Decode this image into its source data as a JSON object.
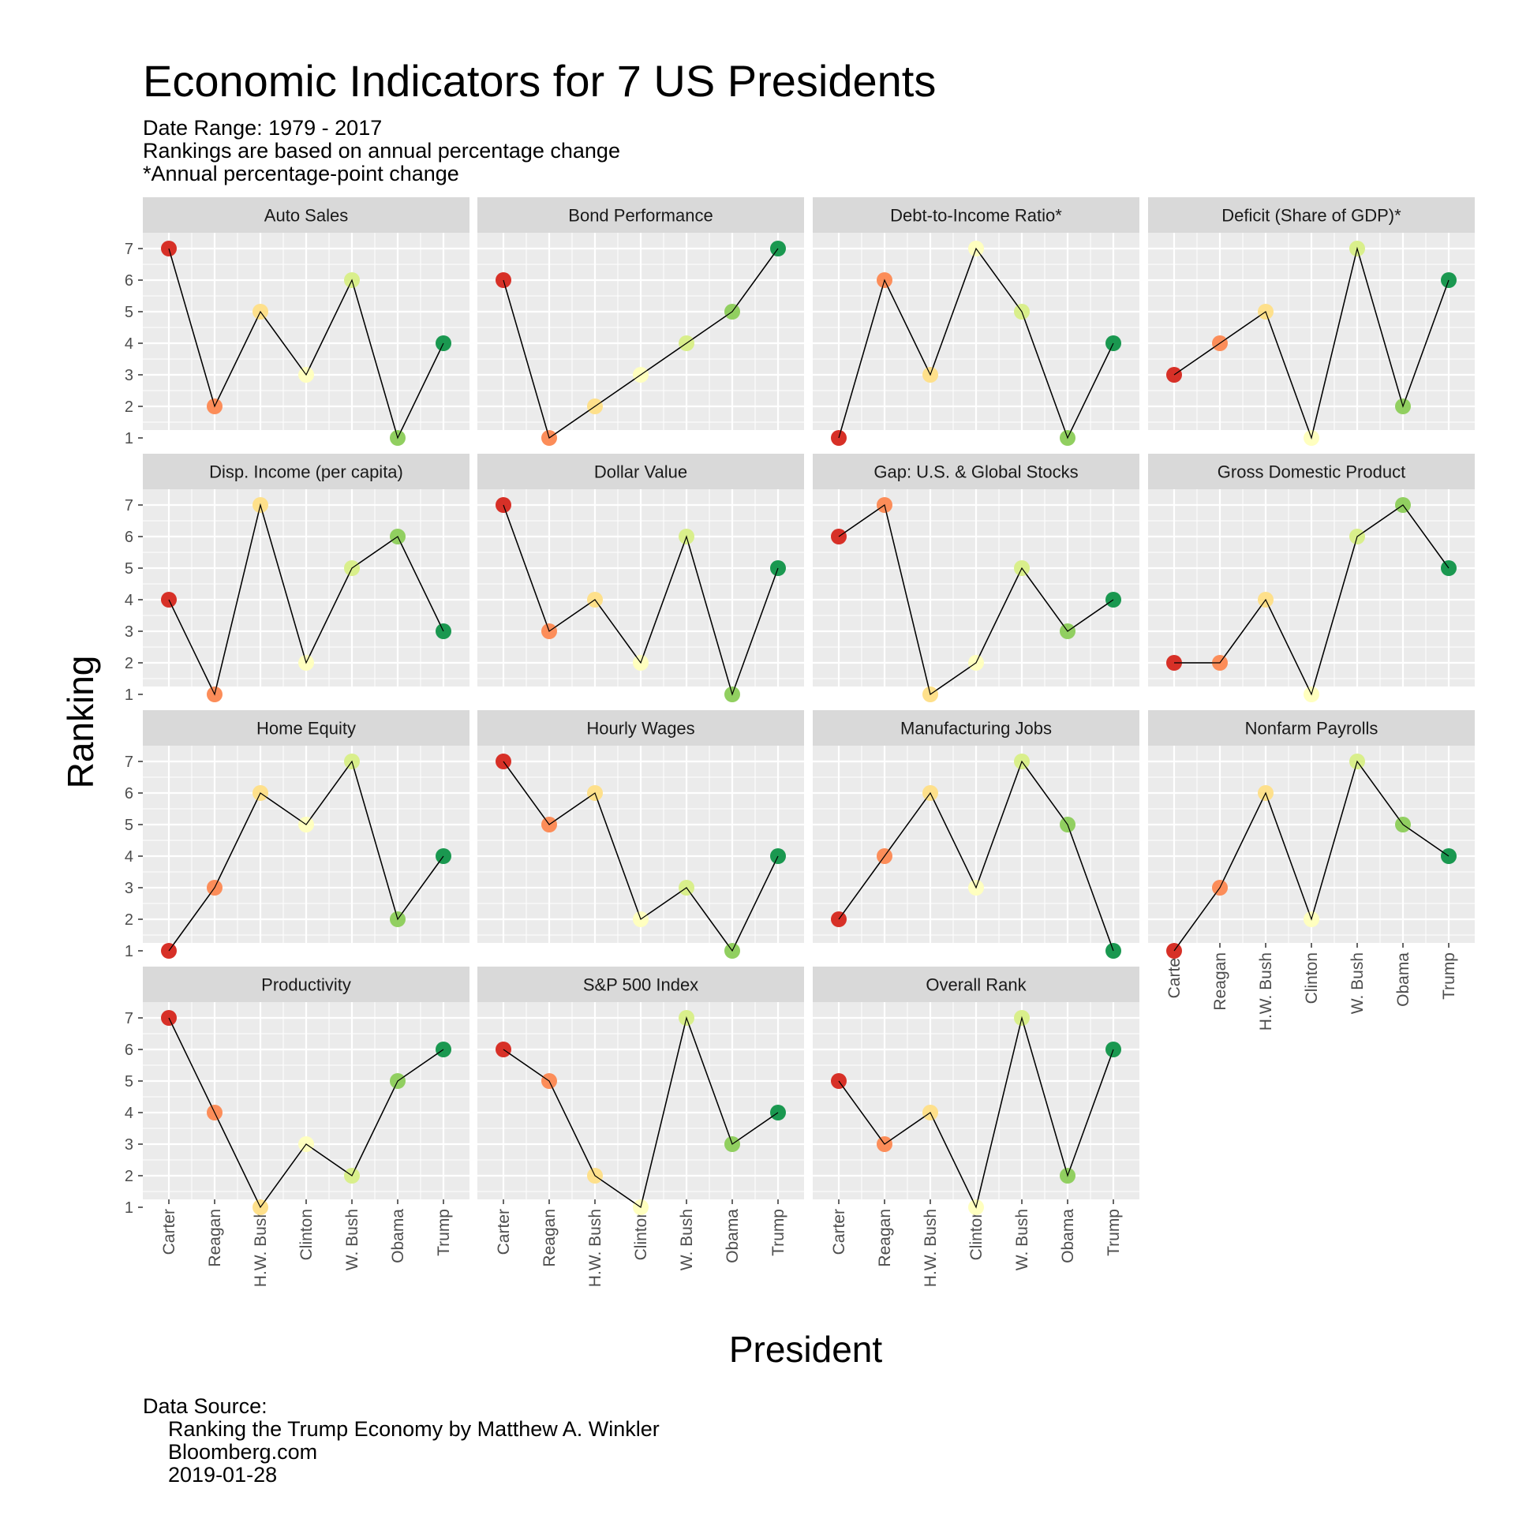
{
  "title": "Economic Indicators for 7 US Presidents",
  "subtitle": [
    "Date Range: 1979 - 2017",
    "Rankings are based on annual percentage change",
    "*Annual percentage-point change"
  ],
  "caption": {
    "label": "Data Source:",
    "lines": [
      "Ranking the Trump Economy by Matthew A. Winkler",
      "Bloomberg.com",
      "2019-01-28"
    ]
  },
  "chart_data": {
    "type": "line",
    "xlabel": "President",
    "ylabel": "Ranking",
    "categories": [
      "Carter",
      "Reagan",
      "H.W. Bush",
      "Clinton",
      "W. Bush",
      "Obama",
      "Trump"
    ],
    "yticks": [
      1,
      2,
      3,
      4,
      5,
      6,
      7
    ],
    "ylim": [
      1,
      7
    ],
    "grid": true,
    "point_colors": [
      "#d73027",
      "#fc8d59",
      "#fee08b",
      "#ffffbf",
      "#d9ef8b",
      "#91cf60",
      "#1a9850"
    ],
    "line_color": "#000000",
    "panel_background": "#ebebeb",
    "strip_background": "#d9d9d9",
    "panels": [
      {
        "name": "Auto Sales",
        "values": [
          7,
          2,
          5,
          3,
          6,
          1,
          4
        ]
      },
      {
        "name": "Bond Performance",
        "values": [
          6,
          1,
          2,
          3,
          4,
          5,
          7
        ]
      },
      {
        "name": "Debt-to-Income Ratio*",
        "values": [
          1,
          6,
          3,
          7,
          5,
          1,
          4
        ]
      },
      {
        "name": "Deficit (Share of GDP)*",
        "values": [
          3,
          4,
          5,
          1,
          7,
          2,
          6
        ]
      },
      {
        "name": "Disp. Income (per capita)",
        "values": [
          4,
          1,
          7,
          2,
          5,
          6,
          3
        ]
      },
      {
        "name": "Dollar Value",
        "values": [
          7,
          3,
          4,
          2,
          6,
          1,
          5
        ]
      },
      {
        "name": "Gap: U.S. & Global Stocks",
        "values": [
          6,
          7,
          1,
          2,
          5,
          3,
          4
        ]
      },
      {
        "name": "Gross Domestic Product",
        "values": [
          2,
          2,
          4,
          1,
          6,
          7,
          5
        ]
      },
      {
        "name": "Home Equity",
        "values": [
          1,
          3,
          6,
          5,
          7,
          2,
          4
        ]
      },
      {
        "name": "Hourly Wages",
        "values": [
          7,
          5,
          6,
          2,
          3,
          1,
          4
        ]
      },
      {
        "name": "Manufacturing Jobs",
        "values": [
          2,
          4,
          6,
          3,
          7,
          5,
          1
        ]
      },
      {
        "name": "Nonfarm Payrolls",
        "values": [
          1,
          3,
          6,
          2,
          7,
          5,
          4
        ]
      },
      {
        "name": "Productivity",
        "values": [
          7,
          4,
          1,
          3,
          2,
          5,
          6
        ]
      },
      {
        "name": "S&P 500 Index",
        "values": [
          6,
          5,
          2,
          1,
          7,
          3,
          4
        ]
      },
      {
        "name": "Overall Rank",
        "values": [
          5,
          3,
          4,
          1,
          7,
          2,
          6
        ]
      }
    ]
  }
}
